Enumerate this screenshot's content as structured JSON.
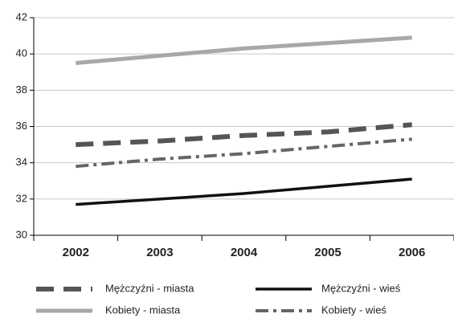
{
  "chart_data": {
    "type": "line",
    "categories": [
      "2002",
      "2003",
      "2004",
      "2005",
      "2006"
    ],
    "series": [
      {
        "name": "Mężczyźni - miasta",
        "color": "#555555",
        "values": [
          35.0,
          35.2,
          35.5,
          35.7,
          36.1
        ]
      },
      {
        "name": "Mężczyźni - wieś",
        "color": "#111111",
        "values": [
          31.7,
          32.0,
          32.3,
          32.7,
          33.1
        ]
      },
      {
        "name": "Kobiety - miasta",
        "color": "#a8a8a8",
        "values": [
          39.5,
          39.9,
          40.3,
          40.6,
          40.9
        ]
      },
      {
        "name": "Kobiety - wieś",
        "color": "#666666",
        "values": [
          33.8,
          34.2,
          34.5,
          34.9,
          35.3
        ]
      }
    ],
    "ylim": [
      30,
      42
    ],
    "yticks": [
      30,
      32,
      34,
      36,
      38,
      40,
      42
    ],
    "grid": true
  }
}
